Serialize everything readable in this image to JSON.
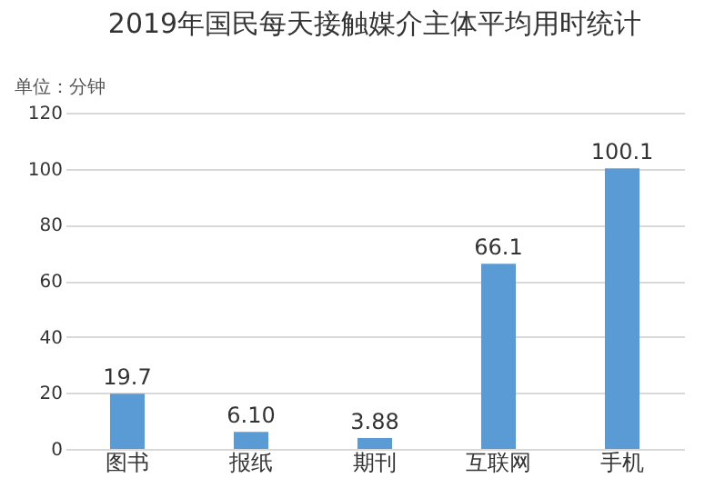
{
  "chart_data": {
    "type": "bar",
    "title": "2019年国民每天接触媒介主体平均用时统计",
    "annotations": [
      "单位：分钟"
    ],
    "categories": [
      "图书",
      "报纸",
      "期刊",
      "互联网",
      "手机"
    ],
    "values": [
      19.7,
      6.1,
      3.88,
      66.1,
      100.1
    ],
    "value_labels": [
      "19.7",
      "6.10",
      "3.88",
      "66.1",
      "100.1"
    ],
    "color": "#5b9bd5",
    "ylim": [
      0,
      120
    ],
    "yticks": [
      0,
      20,
      40,
      60,
      80,
      100,
      120
    ],
    "grid": "y"
  }
}
